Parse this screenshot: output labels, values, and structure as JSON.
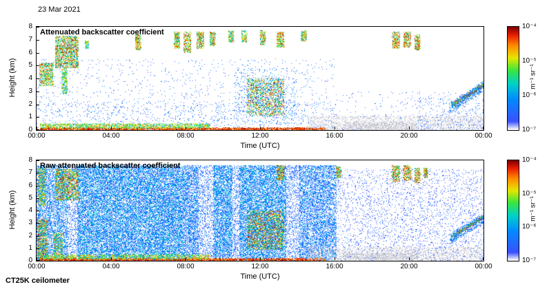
{
  "page": {
    "date_label": "23 Mar 2021",
    "instrument_label": "CT25K ceilometer"
  },
  "colors": {
    "background": "#ffffff",
    "axis": "#000000",
    "gray_speckle": "#c4c4d2"
  },
  "colormap": [
    [
      0.0,
      "#ffffff"
    ],
    [
      0.08,
      "#3c50ff"
    ],
    [
      0.3,
      "#008cff"
    ],
    [
      0.45,
      "#00d2c8"
    ],
    [
      0.58,
      "#3ce63c"
    ],
    [
      0.7,
      "#e6e600"
    ],
    [
      0.82,
      "#ff8c00"
    ],
    [
      0.92,
      "#eb1e00"
    ],
    [
      1.0,
      "#820000"
    ]
  ],
  "chart_data": [
    {
      "type": "heatmap",
      "title": "Attenuated backscatter coefficient",
      "xlabel": "Time (UTC)",
      "ylabel": "Height (km)",
      "xlim_hours": [
        0,
        24
      ],
      "ylim_km": [
        0,
        8
      ],
      "x_ticks": [
        "00:00",
        "04:00",
        "08:00",
        "12:00",
        "16:00",
        "20:00",
        "00:00"
      ],
      "y_ticks": [
        0,
        1,
        2,
        3,
        4,
        5,
        6,
        7,
        8
      ],
      "colorbar": {
        "ticks": [
          "10⁻⁴",
          "10⁻⁵",
          "10⁻⁶",
          "10⁻⁷"
        ],
        "unit": "m⁻¹ sr⁻¹",
        "scale": "log",
        "range_min": "1e-7",
        "range_max": "1e-4"
      },
      "seed": 42,
      "features": [
        {
          "name": "low-level-speckle",
          "t": [
            0,
            16
          ],
          "h": [
            0,
            2.2
          ],
          "n": 1100,
          "v": [
            0.07,
            0.32
          ]
        },
        {
          "name": "mid-level-speckle",
          "t": [
            0,
            16
          ],
          "h": [
            2.2,
            5.5
          ],
          "n": 600,
          "v": [
            0.06,
            0.28
          ]
        },
        {
          "name": "right-sparse-speckle",
          "t": [
            16,
            24
          ],
          "h": [
            0,
            3
          ],
          "n": 260,
          "v": [
            0.05,
            0.24
          ]
        },
        {
          "name": "surface-red-layer",
          "t": [
            0.2,
            15.5
          ],
          "h": [
            0,
            0.18
          ],
          "n": 2600,
          "v": [
            0.78,
            1
          ]
        },
        {
          "name": "surface-aerosol-band",
          "t": [
            0.2,
            9.3
          ],
          "h": [
            0.12,
            0.5
          ],
          "n": 1800,
          "v": [
            0.4,
            0.85
          ]
        },
        {
          "name": "early-low-cloud",
          "t": [
            0.15,
            0.9
          ],
          "h": [
            3.4,
            5.2
          ],
          "n": 700,
          "v": [
            0.3,
            0.95
          ]
        },
        {
          "name": "early-high-cloud",
          "t": [
            1.0,
            2.25
          ],
          "h": [
            4.8,
            7.3
          ],
          "n": 1600,
          "v": [
            0.3,
            1
          ]
        },
        {
          "name": "early-mid-streak",
          "t": [
            1.35,
            1.65
          ],
          "h": [
            2.8,
            4.8
          ],
          "n": 300,
          "v": [
            0.3,
            0.8
          ]
        },
        {
          "name": "cloud-0245",
          "t": [
            2.6,
            2.8
          ],
          "h": [
            6.3,
            6.9
          ],
          "n": 80,
          "v": [
            0.3,
            0.8
          ]
        },
        {
          "name": "cloud-0530",
          "t": [
            5.3,
            5.6
          ],
          "h": [
            6.2,
            7.4
          ],
          "n": 260,
          "v": [
            0.4,
            1
          ]
        },
        {
          "name": "cloud-0730",
          "t": [
            7.4,
            7.7
          ],
          "h": [
            6.3,
            7.6
          ],
          "n": 280,
          "v": [
            0.4,
            1
          ]
        },
        {
          "name": "cloud-0810",
          "t": [
            7.9,
            8.3
          ],
          "h": [
            6.0,
            7.6
          ],
          "n": 320,
          "v": [
            0.4,
            1
          ]
        },
        {
          "name": "cloud-0850",
          "t": [
            8.6,
            9.0
          ],
          "h": [
            6.3,
            7.6
          ],
          "n": 280,
          "v": [
            0.4,
            1
          ]
        },
        {
          "name": "cloud-0930",
          "t": [
            9.3,
            9.6
          ],
          "h": [
            6.5,
            7.6
          ],
          "n": 220,
          "v": [
            0.35,
            0.95
          ]
        },
        {
          "name": "cirrus-1030",
          "t": [
            10.3,
            10.6
          ],
          "h": [
            6.8,
            7.7
          ],
          "n": 180,
          "v": [
            0.3,
            0.9
          ]
        },
        {
          "name": "cirrus-1110",
          "t": [
            11.0,
            11.3
          ],
          "h": [
            6.8,
            7.7
          ],
          "n": 160,
          "v": [
            0.3,
            0.9
          ]
        },
        {
          "name": "cloud-1210",
          "t": [
            12.0,
            12.3
          ],
          "h": [
            6.6,
            7.7
          ],
          "n": 200,
          "v": [
            0.35,
            1
          ]
        },
        {
          "name": "cloud-1300",
          "t": [
            12.9,
            13.3
          ],
          "h": [
            6.4,
            7.6
          ],
          "n": 280,
          "v": [
            0.4,
            1
          ]
        },
        {
          "name": "cloud-1430",
          "t": [
            14.2,
            14.5
          ],
          "h": [
            6.9,
            7.7
          ],
          "n": 180,
          "v": [
            0.35,
            0.95
          ]
        },
        {
          "name": "midday-precip-core",
          "t": [
            11.3,
            13.3
          ],
          "h": [
            1.1,
            4.0
          ],
          "n": 1700,
          "v": [
            0.2,
            1
          ]
        },
        {
          "name": "midday-speckle-halo",
          "t": [
            10.6,
            14.0
          ],
          "h": [
            0.4,
            4.8
          ],
          "n": 500,
          "v": [
            0.07,
            0.4
          ]
        },
        {
          "name": "cloud-1915",
          "t": [
            19.1,
            19.5
          ],
          "h": [
            6.3,
            7.6
          ],
          "n": 280,
          "v": [
            0.4,
            1
          ]
        },
        {
          "name": "cloud-1950",
          "t": [
            19.7,
            20.1
          ],
          "h": [
            6.4,
            7.6
          ],
          "n": 280,
          "v": [
            0.4,
            1
          ]
        },
        {
          "name": "cloud-2025",
          "t": [
            20.3,
            20.6
          ],
          "h": [
            6.2,
            7.4
          ],
          "n": 240,
          "v": [
            0.4,
            1
          ]
        },
        {
          "name": "drizzle-gray",
          "t": [
            14.5,
            24
          ],
          "h": [
            0,
            1.1
          ],
          "n": 1900,
          "v": [
            0.1,
            0.3
          ],
          "gray": true
        },
        {
          "name": "drizzle-gray-dense",
          "t": [
            16.5,
            20.5
          ],
          "h": [
            0,
            0.6
          ],
          "n": 800,
          "v": [
            0.1,
            0.3
          ],
          "gray": true
        },
        {
          "name": "slant-layer",
          "type": "slant",
          "t": [
            22.3,
            24
          ],
          "h": [
            1.9,
            3.5
          ],
          "n": 750,
          "v": [
            0.45,
            1
          ],
          "jitter": 0.12
        },
        {
          "name": "slant-layer-halo",
          "type": "slant",
          "t": [
            22.2,
            24
          ],
          "h": [
            1.7,
            3.4
          ],
          "n": 500,
          "v": [
            0.08,
            0.4
          ],
          "jitter": 0.4
        },
        {
          "name": "late-low-speckle",
          "t": [
            20.5,
            24
          ],
          "h": [
            0,
            2.5
          ],
          "n": 220,
          "v": [
            0.07,
            0.3
          ]
        }
      ]
    },
    {
      "type": "heatmap",
      "title": "Raw attenuated backscatter coefficient",
      "xlabel": "Time (UTC)",
      "ylabel": "Height (km)",
      "xlim_hours": [
        0,
        24
      ],
      "ylim_km": [
        0,
        8
      ],
      "x_ticks": [
        "00:00",
        "04:00",
        "08:00",
        "12:00",
        "16:00",
        "20:00",
        "00:00"
      ],
      "y_ticks": [
        0,
        1,
        2,
        3,
        4,
        5,
        6,
        7,
        8
      ],
      "colorbar": {
        "ticks": [
          "10⁻⁴",
          "10⁻⁵",
          "10⁻⁶",
          "10⁻⁷"
        ],
        "unit": "m⁻¹ sr⁻¹",
        "scale": "log",
        "range_min": "1e-7",
        "range_max": "1e-4"
      },
      "seed": 1337,
      "features": [
        {
          "name": "raw-noise-block-a",
          "t": [
            0,
            1.7
          ],
          "h": [
            0,
            7.6
          ],
          "n": 4200,
          "v": [
            0.06,
            0.42
          ]
        },
        {
          "name": "raw-noise-gap-1",
          "t": [
            1.7,
            2.2
          ],
          "h": [
            0,
            7.6
          ],
          "n": 550,
          "v": [
            0.05,
            0.3
          ]
        },
        {
          "name": "raw-noise-block-b",
          "t": [
            2.2,
            7.9
          ],
          "h": [
            0,
            7.6
          ],
          "n": 19000,
          "v": [
            0.07,
            0.45
          ]
        },
        {
          "name": "raw-noise-block-c",
          "t": [
            7.9,
            8.7
          ],
          "h": [
            0,
            7.6
          ],
          "n": 2300,
          "v": [
            0.06,
            0.4
          ]
        },
        {
          "name": "raw-noise-gap-2",
          "t": [
            8.7,
            9.5
          ],
          "h": [
            0,
            7.6
          ],
          "n": 900,
          "v": [
            0.05,
            0.3
          ]
        },
        {
          "name": "raw-noise-block-d",
          "t": [
            9.5,
            10.5
          ],
          "h": [
            0,
            7.6
          ],
          "n": 3400,
          "v": [
            0.07,
            0.45
          ]
        },
        {
          "name": "raw-noise-gap-3",
          "t": [
            10.5,
            10.9
          ],
          "h": [
            0,
            7.6
          ],
          "n": 500,
          "v": [
            0.05,
            0.3
          ]
        },
        {
          "name": "raw-noise-block-e",
          "t": [
            10.9,
            13.4
          ],
          "h": [
            0,
            7.6
          ],
          "n": 8200,
          "v": [
            0.07,
            0.45
          ]
        },
        {
          "name": "raw-noise-gap-4",
          "t": [
            13.4,
            14.1
          ],
          "h": [
            0,
            7.6
          ],
          "n": 800,
          "v": [
            0.05,
            0.3
          ]
        },
        {
          "name": "raw-noise-block-f",
          "t": [
            14.1,
            16.1
          ],
          "h": [
            0,
            7.6
          ],
          "n": 5200,
          "v": [
            0.06,
            0.4
          ]
        },
        {
          "name": "raw-noise-right",
          "t": [
            16.1,
            24
          ],
          "h": [
            0,
            7.3
          ],
          "n": 2800,
          "v": [
            0.04,
            0.2
          ]
        },
        {
          "name": "left-burst-low",
          "t": [
            0.05,
            0.6
          ],
          "h": [
            0,
            3.3
          ],
          "n": 900,
          "v": [
            0.3,
            1
          ]
        },
        {
          "name": "left-burst-high",
          "t": [
            0.1,
            0.5
          ],
          "h": [
            4.4,
            7.4
          ],
          "n": 600,
          "v": [
            0.3,
            0.9
          ]
        },
        {
          "name": "left-burst-2",
          "t": [
            0.9,
            1.4
          ],
          "h": [
            0,
            2.2
          ],
          "n": 420,
          "v": [
            0.3,
            0.9
          ]
        },
        {
          "name": "early-high-cloud",
          "t": [
            1.0,
            2.25
          ],
          "h": [
            4.8,
            7.3
          ],
          "n": 1500,
          "v": [
            0.3,
            1
          ]
        },
        {
          "name": "surface-red-layer",
          "t": [
            0.2,
            15.5
          ],
          "h": [
            0,
            0.18
          ],
          "n": 2600,
          "v": [
            0.78,
            1
          ]
        },
        {
          "name": "surface-aerosol-band",
          "t": [
            0.2,
            9.3
          ],
          "h": [
            0.12,
            0.5
          ],
          "n": 1500,
          "v": [
            0.4,
            0.85
          ]
        },
        {
          "name": "midday-precip-core",
          "t": [
            11.3,
            13.3
          ],
          "h": [
            0.9,
            4.0
          ],
          "n": 2100,
          "v": [
            0.25,
            1
          ]
        },
        {
          "name": "cloud-1300",
          "t": [
            12.9,
            13.3
          ],
          "h": [
            6.4,
            7.6
          ],
          "n": 300,
          "v": [
            0.4,
            1
          ]
        },
        {
          "name": "cloud-1615",
          "t": [
            16.1,
            16.35
          ],
          "h": [
            6.6,
            7.5
          ],
          "n": 180,
          "v": [
            0.35,
            0.95
          ]
        },
        {
          "name": "cloud-1915",
          "t": [
            19.1,
            19.5
          ],
          "h": [
            6.3,
            7.6
          ],
          "n": 280,
          "v": [
            0.4,
            1
          ]
        },
        {
          "name": "cloud-1950",
          "t": [
            19.7,
            20.1
          ],
          "h": [
            6.4,
            7.6
          ],
          "n": 280,
          "v": [
            0.4,
            1
          ]
        },
        {
          "name": "cloud-2025",
          "t": [
            20.3,
            20.6
          ],
          "h": [
            6.2,
            7.4
          ],
          "n": 240,
          "v": [
            0.4,
            1
          ]
        },
        {
          "name": "cloud-2055",
          "t": [
            20.8,
            21.0
          ],
          "h": [
            6.6,
            7.4
          ],
          "n": 150,
          "v": [
            0.4,
            1
          ]
        },
        {
          "name": "drizzle-gray",
          "t": [
            14.5,
            24
          ],
          "h": [
            0,
            1.1
          ],
          "n": 1900,
          "v": [
            0.1,
            0.3
          ],
          "gray": true
        },
        {
          "name": "drizzle-gray-dense",
          "t": [
            16.5,
            20.5
          ],
          "h": [
            0,
            0.6
          ],
          "n": 800,
          "v": [
            0.1,
            0.3
          ],
          "gray": true
        },
        {
          "name": "slant-layer",
          "type": "slant",
          "t": [
            22.3,
            24
          ],
          "h": [
            1.9,
            3.5
          ],
          "n": 750,
          "v": [
            0.45,
            1
          ],
          "jitter": 0.12
        },
        {
          "name": "slant-layer-halo",
          "type": "slant",
          "t": [
            22.2,
            24
          ],
          "h": [
            1.7,
            3.4
          ],
          "n": 520,
          "v": [
            0.08,
            0.4
          ],
          "jitter": 0.4
        }
      ]
    }
  ]
}
